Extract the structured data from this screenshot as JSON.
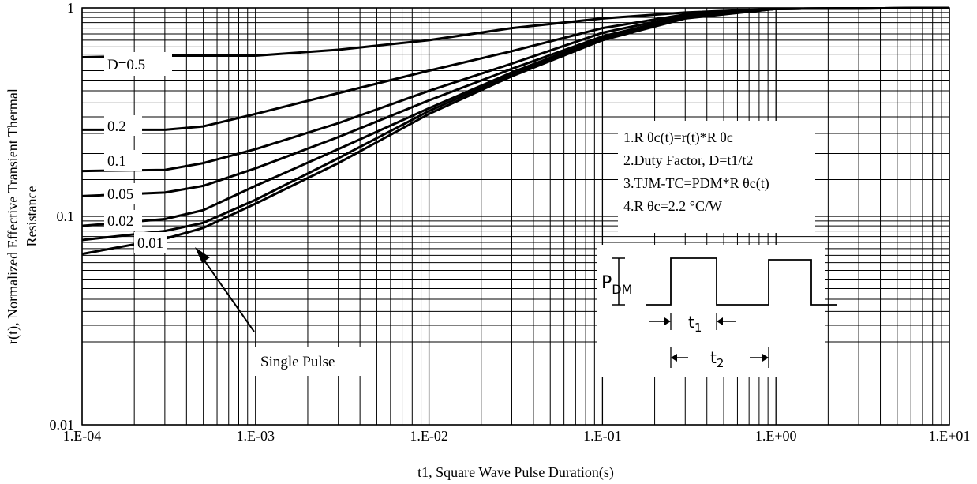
{
  "chart_data": {
    "type": "line",
    "x_scale": "log",
    "y_scale": "log",
    "xlim": [
      0.0001,
      10
    ],
    "ylim": [
      0.01,
      1
    ],
    "grid": true,
    "xlabel": "t1, Square Wave Pulse Duration(s)",
    "ylabel_lines": [
      "r(t), Normalized Effective Transient Thermal",
      "Resistance"
    ],
    "x_tick_labels": [
      "1.E-04",
      "1.E-03",
      "1.E-02",
      "1.E-01",
      "1.E+00",
      "1.E+01"
    ],
    "y_tick_labels": [
      "0.01",
      "0.1",
      "1"
    ],
    "series": [
      {
        "name": "D=0.5",
        "x": [
          0.0001,
          0.0003,
          0.001,
          0.003,
          0.01,
          0.03,
          0.1,
          0.3,
          1,
          10
        ],
        "y": [
          0.58,
          0.59,
          0.59,
          0.63,
          0.7,
          0.8,
          0.89,
          0.95,
          0.99,
          1.0
        ]
      },
      {
        "name": "0.2",
        "x": [
          0.0001,
          0.0003,
          0.0005,
          0.001,
          0.003,
          0.01,
          0.03,
          0.1,
          0.3,
          1,
          10
        ],
        "y": [
          0.26,
          0.26,
          0.27,
          0.31,
          0.39,
          0.5,
          0.62,
          0.8,
          0.93,
          0.99,
          1.0
        ]
      },
      {
        "name": "0.1",
        "x": [
          0.0001,
          0.0003,
          0.0005,
          0.001,
          0.003,
          0.01,
          0.03,
          0.1,
          0.3,
          1,
          10
        ],
        "y": [
          0.165,
          0.167,
          0.18,
          0.21,
          0.28,
          0.4,
          0.54,
          0.76,
          0.92,
          0.99,
          1.0
        ]
      },
      {
        "name": "0.05",
        "x": [
          0.0001,
          0.0003,
          0.0005,
          0.001,
          0.003,
          0.01,
          0.03,
          0.1,
          0.3,
          1,
          10
        ],
        "y": [
          0.125,
          0.13,
          0.14,
          0.17,
          0.24,
          0.36,
          0.51,
          0.73,
          0.91,
          0.99,
          1.0
        ]
      },
      {
        "name": "0.02",
        "x": [
          0.0001,
          0.0003,
          0.0005,
          0.001,
          0.003,
          0.01,
          0.03,
          0.1,
          0.3,
          1,
          10
        ],
        "y": [
          0.09,
          0.097,
          0.107,
          0.14,
          0.21,
          0.33,
          0.49,
          0.72,
          0.9,
          0.99,
          1.0
        ]
      },
      {
        "name": "0.01",
        "x": [
          0.0001,
          0.0003,
          0.0005,
          0.001,
          0.003,
          0.01,
          0.03,
          0.1,
          0.3,
          1,
          10
        ],
        "y": [
          0.077,
          0.085,
          0.093,
          0.12,
          0.19,
          0.32,
          0.48,
          0.71,
          0.9,
          0.99,
          1.0
        ]
      },
      {
        "name": "Single Pulse",
        "x": [
          0.0001,
          0.0003,
          0.0005,
          0.001,
          0.003,
          0.01,
          0.03,
          0.1,
          0.3,
          1,
          10
        ],
        "y": [
          0.066,
          0.078,
          0.088,
          0.115,
          0.18,
          0.31,
          0.47,
          0.7,
          0.89,
          0.99,
          1.0
        ]
      }
    ],
    "curve_labels": [
      "D=0.5",
      "0.2",
      "0.1",
      "0.05",
      "0.02",
      "0.01",
      "Single Pulse"
    ],
    "notes": [
      "1.R θc(t)=r(t)*R θc",
      "2.Duty Factor, D=t1/t2",
      "3.TJM-TC=PDM*R θc(t)",
      "4.R θc=2.2 °C/W"
    ],
    "inset": {
      "pdm": "PDM",
      "t1": "t1",
      "t2": "t2"
    }
  }
}
